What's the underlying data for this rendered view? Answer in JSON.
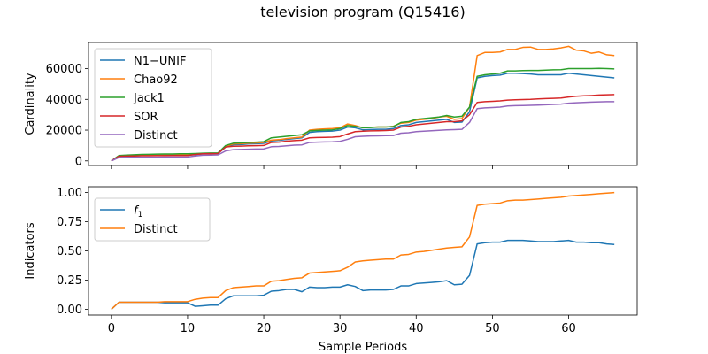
{
  "figure": {
    "title": "television program (Q15416)",
    "xlabel": "Sample Periods"
  },
  "colors": {
    "blue": "#1f77b4",
    "orange": "#ff7f0e",
    "green": "#2ca02c",
    "red": "#d62728",
    "purple": "#9467bd"
  },
  "chart_data": [
    {
      "type": "line",
      "ylabel": "Cardinality",
      "xlim": [
        -3,
        69
      ],
      "ylim": [
        -3000,
        77000
      ],
      "xticks": [
        0,
        10,
        20,
        30,
        40,
        50,
        60
      ],
      "yticks": [
        0,
        20000,
        40000,
        60000
      ],
      "legend": "top-left",
      "series": [
        {
          "name": "N1−UNIF",
          "color": "#1f77b4",
          "x": [
            0,
            1,
            2,
            3,
            4,
            5,
            6,
            7,
            8,
            9,
            10,
            11,
            12,
            13,
            14,
            15,
            16,
            17,
            18,
            19,
            20,
            21,
            22,
            23,
            24,
            25,
            26,
            27,
            28,
            29,
            30,
            31,
            32,
            33,
            34,
            35,
            36,
            37,
            38,
            39,
            40,
            41,
            42,
            43,
            44,
            45,
            46,
            47,
            48,
            49,
            50,
            51,
            52,
            53,
            54,
            55,
            56,
            57,
            58,
            59,
            60,
            61,
            62,
            63,
            64,
            65,
            66
          ],
          "values": [
            0,
            3000,
            3200,
            3400,
            3500,
            3600,
            3600,
            3700,
            3700,
            3800,
            3800,
            4000,
            4500,
            4600,
            4700,
            9000,
            10500,
            10600,
            11000,
            11200,
            11400,
            13000,
            13300,
            14000,
            14500,
            15000,
            18500,
            19000,
            19200,
            19400,
            20000,
            22000,
            21500,
            20200,
            20400,
            20500,
            20500,
            21000,
            23000,
            23500,
            25000,
            25500,
            26000,
            26500,
            27000,
            25000,
            25200,
            32000,
            54000,
            55000,
            55500,
            55800,
            57000,
            57000,
            56800,
            56500,
            56000,
            56000,
            56000,
            56000,
            57000,
            56500,
            56000,
            55500,
            55000,
            54500,
            54000
          ]
        },
        {
          "name": "Chao92",
          "color": "#ff7f0e",
          "x": [
            0,
            1,
            2,
            3,
            4,
            5,
            6,
            7,
            8,
            9,
            10,
            11,
            12,
            13,
            14,
            15,
            16,
            17,
            18,
            19,
            20,
            21,
            22,
            23,
            24,
            25,
            26,
            27,
            28,
            29,
            30,
            31,
            32,
            33,
            34,
            35,
            36,
            37,
            38,
            39,
            40,
            41,
            42,
            43,
            44,
            45,
            46,
            47,
            48,
            49,
            50,
            51,
            52,
            53,
            54,
            55,
            56,
            57,
            58,
            59,
            60,
            61,
            62,
            63,
            64,
            65,
            66
          ],
          "values": [
            0,
            3000,
            3200,
            3400,
            3500,
            3600,
            3600,
            3700,
            3700,
            3800,
            3800,
            4300,
            4600,
            4700,
            4800,
            9500,
            11000,
            11200,
            11500,
            11700,
            12000,
            13500,
            13800,
            14500,
            15000,
            15500,
            20000,
            20500,
            20800,
            21000,
            21500,
            24000,
            23000,
            21500,
            21800,
            22000,
            22000,
            22500,
            24500,
            25000,
            26500,
            27000,
            27500,
            28500,
            29000,
            27000,
            27500,
            35000,
            68500,
            70500,
            70500,
            70800,
            72500,
            72500,
            73800,
            74000,
            72500,
            72500,
            72800,
            73500,
            74500,
            72000,
            71500,
            70000,
            70800,
            69000,
            68500
          ]
        },
        {
          "name": "Jack1",
          "color": "#2ca02c",
          "x": [
            0,
            1,
            2,
            3,
            4,
            5,
            6,
            7,
            8,
            9,
            10,
            11,
            12,
            13,
            14,
            15,
            16,
            17,
            18,
            19,
            20,
            21,
            22,
            23,
            24,
            25,
            26,
            27,
            28,
            29,
            30,
            31,
            32,
            33,
            34,
            35,
            36,
            37,
            38,
            39,
            40,
            41,
            42,
            43,
            44,
            45,
            46,
            47,
            48,
            49,
            50,
            51,
            52,
            53,
            54,
            55,
            56,
            57,
            58,
            59,
            60,
            61,
            62,
            63,
            64,
            65,
            66
          ],
          "values": [
            0,
            3500,
            3800,
            4000,
            4200,
            4300,
            4400,
            4500,
            4500,
            4600,
            4600,
            4800,
            5000,
            5100,
            5200,
            10000,
            11500,
            11700,
            12000,
            12200,
            12500,
            15000,
            15500,
            16000,
            16500,
            17000,
            19500,
            19800,
            20000,
            20200,
            21000,
            23000,
            22500,
            21500,
            21700,
            22000,
            22000,
            22300,
            25000,
            25500,
            27000,
            27500,
            28000,
            28500,
            29500,
            28500,
            29000,
            35000,
            55000,
            56000,
            56500,
            57000,
            58500,
            58500,
            58700,
            58800,
            58800,
            59000,
            59200,
            59300,
            60000,
            60000,
            60000,
            60000,
            60200,
            60000,
            59800
          ]
        },
        {
          "name": "SOR",
          "color": "#d62728",
          "x": [
            0,
            1,
            2,
            3,
            4,
            5,
            6,
            7,
            8,
            9,
            10,
            11,
            12,
            13,
            14,
            15,
            16,
            17,
            18,
            19,
            20,
            21,
            22,
            23,
            24,
            25,
            26,
            27,
            28,
            29,
            30,
            31,
            32,
            33,
            34,
            35,
            36,
            37,
            38,
            39,
            40,
            41,
            42,
            43,
            44,
            45,
            46,
            47,
            48,
            49,
            50,
            51,
            52,
            53,
            54,
            55,
            56,
            57,
            58,
            59,
            60,
            61,
            62,
            63,
            64,
            65,
            66
          ],
          "values": [
            0,
            3000,
            3100,
            3200,
            3300,
            3300,
            3400,
            3400,
            3500,
            3500,
            3500,
            4200,
            4600,
            4700,
            4800,
            9000,
            9500,
            9600,
            9800,
            9900,
            10000,
            12000,
            12200,
            12800,
            13200,
            13500,
            15000,
            15200,
            15300,
            15400,
            15800,
            17500,
            19000,
            19300,
            19500,
            19600,
            19700,
            20000,
            22000,
            22500,
            23500,
            24000,
            24500,
            25000,
            25500,
            25500,
            26000,
            30000,
            38000,
            38500,
            38700,
            39000,
            39500,
            39700,
            39900,
            40000,
            40300,
            40500,
            40700,
            40900,
            41500,
            42000,
            42300,
            42500,
            42800,
            43000,
            43100
          ]
        },
        {
          "name": "Distinct",
          "color": "#9467bd",
          "x": [
            0,
            1,
            2,
            3,
            4,
            5,
            6,
            7,
            8,
            9,
            10,
            11,
            12,
            13,
            14,
            15,
            16,
            17,
            18,
            19,
            20,
            21,
            22,
            23,
            24,
            25,
            26,
            27,
            28,
            29,
            30,
            31,
            32,
            33,
            34,
            35,
            36,
            37,
            38,
            39,
            40,
            41,
            42,
            43,
            44,
            45,
            46,
            47,
            48,
            49,
            50,
            51,
            52,
            53,
            54,
            55,
            56,
            57,
            58,
            59,
            60,
            61,
            62,
            63,
            64,
            65,
            66
          ],
          "values": [
            0,
            2200,
            2300,
            2300,
            2400,
            2400,
            2400,
            2500,
            2500,
            2500,
            2500,
            3200,
            3700,
            3800,
            3900,
            6500,
            7300,
            7400,
            7600,
            7700,
            7800,
            9200,
            9400,
            9800,
            10200,
            10400,
            12000,
            12200,
            12300,
            12400,
            12700,
            14000,
            15700,
            16000,
            16200,
            16300,
            16400,
            16500,
            18000,
            18300,
            19000,
            19300,
            19600,
            19900,
            20200,
            20300,
            20500,
            25000,
            34000,
            34500,
            34700,
            35000,
            35700,
            35900,
            36000,
            36100,
            36300,
            36500,
            36700,
            36900,
            37500,
            37800,
            38000,
            38200,
            38400,
            38500,
            38500
          ]
        }
      ]
    },
    {
      "type": "line",
      "ylabel": "Indicators",
      "xlim": [
        -3,
        69
      ],
      "ylim": [
        -0.05,
        1.05
      ],
      "xticks": [
        0,
        10,
        20,
        30,
        40,
        50,
        60
      ],
      "yticks": [
        0.0,
        0.25,
        0.5,
        0.75,
        1.0
      ],
      "ytick_labels": [
        "0.00",
        "0.25",
        "0.50",
        "0.75",
        "1.00"
      ],
      "legend": "top-left",
      "series": [
        {
          "name": "f",
          "name_sub": "1",
          "color": "#1f77b4",
          "x": [
            0,
            1,
            2,
            3,
            4,
            5,
            6,
            7,
            8,
            9,
            10,
            11,
            12,
            13,
            14,
            15,
            16,
            17,
            18,
            19,
            20,
            21,
            22,
            23,
            24,
            25,
            26,
            27,
            28,
            29,
            30,
            31,
            32,
            33,
            34,
            35,
            36,
            37,
            38,
            39,
            40,
            41,
            42,
            43,
            44,
            45,
            46,
            47,
            48,
            49,
            50,
            51,
            52,
            53,
            54,
            55,
            56,
            57,
            58,
            59,
            60,
            61,
            62,
            63,
            64,
            65,
            66
          ],
          "values": [
            0.0,
            0.06,
            0.06,
            0.06,
            0.06,
            0.06,
            0.06,
            0.055,
            0.055,
            0.055,
            0.055,
            0.025,
            0.03,
            0.035,
            0.035,
            0.09,
            0.115,
            0.115,
            0.115,
            0.115,
            0.12,
            0.155,
            0.16,
            0.17,
            0.17,
            0.15,
            0.19,
            0.185,
            0.185,
            0.19,
            0.19,
            0.21,
            0.195,
            0.16,
            0.165,
            0.165,
            0.165,
            0.17,
            0.2,
            0.2,
            0.22,
            0.225,
            0.23,
            0.235,
            0.245,
            0.21,
            0.215,
            0.29,
            0.56,
            0.57,
            0.575,
            0.575,
            0.59,
            0.59,
            0.59,
            0.585,
            0.58,
            0.58,
            0.58,
            0.585,
            0.59,
            0.575,
            0.575,
            0.57,
            0.57,
            0.56,
            0.555
          ]
        },
        {
          "name": "Distinct",
          "color": "#ff7f0e",
          "x": [
            0,
            1,
            2,
            3,
            4,
            5,
            6,
            7,
            8,
            9,
            10,
            11,
            12,
            13,
            14,
            15,
            16,
            17,
            18,
            19,
            20,
            21,
            22,
            23,
            24,
            25,
            26,
            27,
            28,
            29,
            30,
            31,
            32,
            33,
            34,
            35,
            36,
            37,
            38,
            39,
            40,
            41,
            42,
            43,
            44,
            45,
            46,
            47,
            48,
            49,
            50,
            51,
            52,
            53,
            54,
            55,
            56,
            57,
            58,
            59,
            60,
            61,
            62,
            63,
            64,
            65,
            66
          ],
          "values": [
            0.0,
            0.06,
            0.06,
            0.06,
            0.06,
            0.06,
            0.06,
            0.065,
            0.065,
            0.065,
            0.065,
            0.085,
            0.095,
            0.1,
            0.1,
            0.16,
            0.185,
            0.19,
            0.195,
            0.2,
            0.2,
            0.24,
            0.245,
            0.255,
            0.265,
            0.27,
            0.31,
            0.315,
            0.32,
            0.325,
            0.33,
            0.36,
            0.405,
            0.415,
            0.42,
            0.425,
            0.43,
            0.43,
            0.465,
            0.47,
            0.49,
            0.495,
            0.505,
            0.515,
            0.525,
            0.53,
            0.535,
            0.62,
            0.89,
            0.9,
            0.905,
            0.91,
            0.93,
            0.935,
            0.935,
            0.94,
            0.945,
            0.95,
            0.955,
            0.96,
            0.97,
            0.975,
            0.98,
            0.985,
            0.99,
            0.995,
            1.0
          ]
        }
      ]
    }
  ]
}
